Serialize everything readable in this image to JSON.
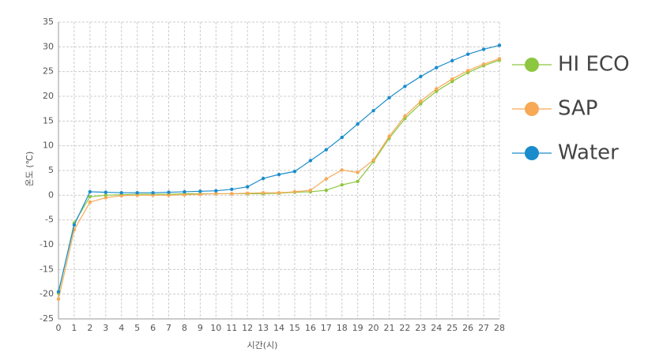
{
  "chart_data": {
    "type": "line",
    "xlabel": "시간(시)",
    "ylabel": "온도 (℃)",
    "x": [
      0,
      1,
      2,
      3,
      4,
      5,
      6,
      7,
      8,
      9,
      10,
      11,
      12,
      13,
      14,
      15,
      16,
      17,
      18,
      19,
      20,
      21,
      22,
      23,
      24,
      25,
      26,
      27,
      28
    ],
    "xlim": [
      0,
      28
    ],
    "xticks": [
      0,
      1,
      2,
      3,
      4,
      5,
      6,
      7,
      8,
      9,
      10,
      11,
      12,
      13,
      14,
      15,
      16,
      17,
      18,
      19,
      20,
      21,
      22,
      23,
      24,
      25,
      26,
      27,
      28
    ],
    "ylim": [
      -25,
      35
    ],
    "yticks": [
      -25,
      -20,
      -15,
      -10,
      -5,
      0,
      5,
      10,
      15,
      20,
      25,
      30,
      35
    ],
    "grid": true,
    "legend": "right",
    "series": [
      {
        "name": "HI ECO",
        "color": "#8dc63f",
        "values": [
          -19.8,
          -5.6,
          -0.3,
          0,
          0.1,
          0.2,
          0.2,
          0.2,
          0.3,
          0.3,
          0.3,
          0.3,
          0.3,
          0.3,
          0.4,
          0.6,
          0.7,
          1,
          2.1,
          2.8,
          6.8,
          11.5,
          15.5,
          18.5,
          21,
          23,
          24.8,
          26.2,
          27.3
        ]
      },
      {
        "name": "SAP",
        "color": "#f7a955",
        "values": [
          -21,
          -7,
          -1.4,
          -0.5,
          -0.1,
          0,
          0,
          0,
          0.1,
          0.2,
          0.3,
          0.3,
          0.4,
          0.5,
          0.5,
          0.7,
          1,
          3.3,
          5.1,
          4.6,
          7.1,
          11.9,
          16,
          19,
          21.5,
          23.5,
          25.2,
          26.5,
          27.6
        ]
      },
      {
        "name": "Water",
        "color": "#1a8ccb",
        "values": [
          -19.5,
          -6,
          0.7,
          0.6,
          0.5,
          0.5,
          0.5,
          0.6,
          0.7,
          0.8,
          0.9,
          1.2,
          1.7,
          3.4,
          4.2,
          4.8,
          7,
          9.2,
          11.7,
          14.4,
          17.1,
          19.7,
          22,
          24,
          25.8,
          27.2,
          28.5,
          29.5,
          30.3
        ]
      }
    ]
  }
}
